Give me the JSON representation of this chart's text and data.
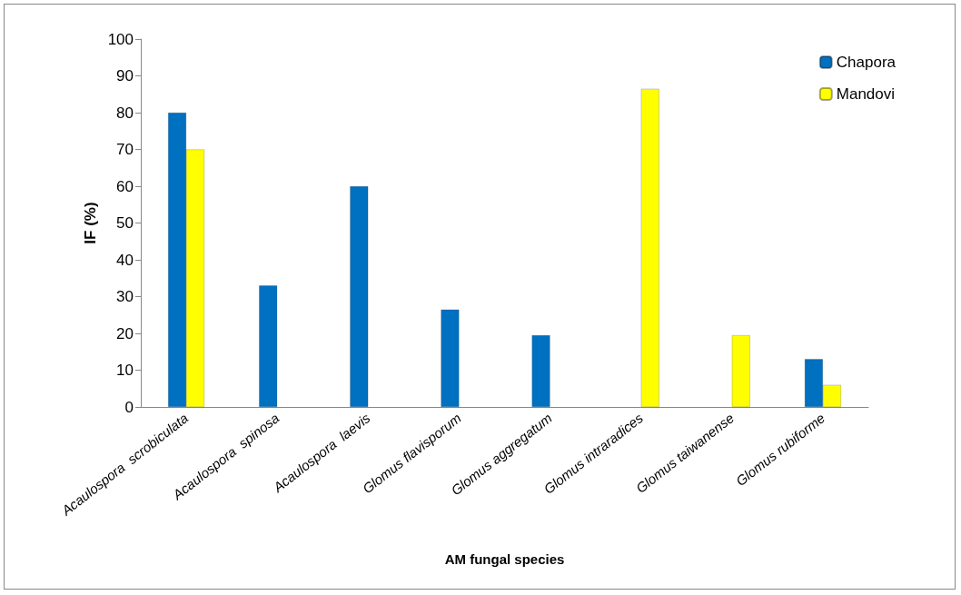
{
  "chart_data": {
    "type": "bar",
    "xlabel": "AM fungal species",
    "ylabel": "IF (%)",
    "categories": [
      "Acaulospora  scrobiculata",
      "Acaulospora  spinosa",
      "Acaulospora  laevis",
      "Glomus flavisporum",
      "Glomus aggregatum",
      "Glomus intraradices",
      "Glomus taiwanense",
      "Glomus rubiforme"
    ],
    "series": [
      {
        "name": "Chapora",
        "color": "#0070c0",
        "values": [
          80,
          33,
          60,
          26.5,
          19.5,
          null,
          null,
          13
        ]
      },
      {
        "name": "Mandovi",
        "color": "#ffff00",
        "values": [
          70,
          null,
          null,
          null,
          null,
          86.5,
          19.5,
          6
        ]
      }
    ],
    "ylim": [
      0,
      100
    ],
    "yticks": [
      0,
      10,
      20,
      30,
      40,
      50,
      60,
      70,
      80,
      90,
      100
    ],
    "grid": false,
    "legend": "top right"
  }
}
